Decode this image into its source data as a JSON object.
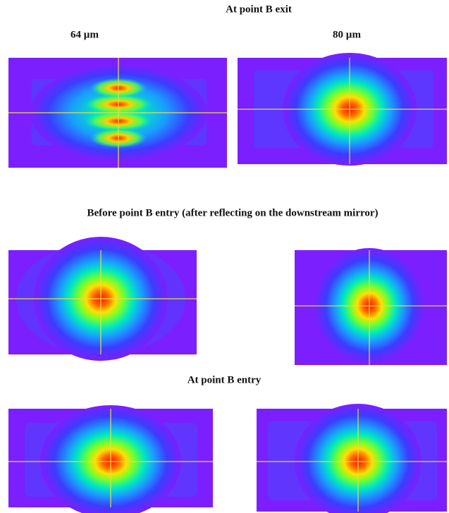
{
  "section_titles": [
    "At point B exit",
    "Before point B entry (after reflecting on the downstream mirror)",
    "At point B entry"
  ],
  "column_labels": [
    "64 µm",
    "80 µm"
  ]
}
